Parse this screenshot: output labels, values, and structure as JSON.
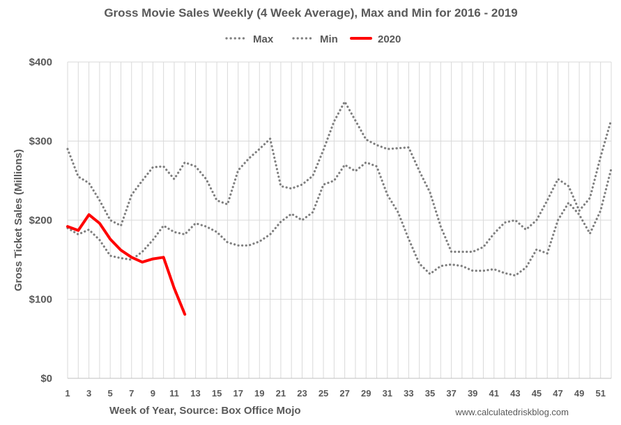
{
  "chart_data": {
    "type": "line",
    "title": "Gross Movie Sales Weekly (4 Week Average), Max and Min for 2016 - 2019",
    "xlabel": "Week of Year, Source: Box Office Mojo",
    "ylabel": "Gross Ticket Sales (Millions)",
    "source_note": "www.calculatedriskblog.com",
    "legend_position": "top-center",
    "grid": true,
    "xlim": [
      1,
      52
    ],
    "ylim": [
      0,
      400
    ],
    "y_ticks": [
      {
        "value": 0,
        "label": "$0"
      },
      {
        "value": 100,
        "label": "$100"
      },
      {
        "value": 200,
        "label": "$200"
      },
      {
        "value": 300,
        "label": "$300"
      },
      {
        "value": 400,
        "label": "$400"
      }
    ],
    "x_ticks": [
      "1",
      "3",
      "5",
      "7",
      "9",
      "11",
      "13",
      "15",
      "17",
      "19",
      "21",
      "23",
      "25",
      "27",
      "29",
      "31",
      "33",
      "35",
      "37",
      "39",
      "41",
      "43",
      "45",
      "47",
      "49",
      "51"
    ],
    "series": [
      {
        "name": "Max",
        "style": "dotted",
        "color": "#7f7f7f",
        "x": [
          1,
          2,
          3,
          4,
          5,
          6,
          7,
          8,
          9,
          10,
          11,
          12,
          13,
          14,
          15,
          16,
          17,
          18,
          19,
          20,
          21,
          22,
          23,
          24,
          25,
          26,
          27,
          28,
          29,
          30,
          31,
          32,
          33,
          34,
          35,
          36,
          37,
          38,
          39,
          40,
          41,
          42,
          43,
          44,
          45,
          46,
          47,
          48,
          49,
          50,
          51,
          52
        ],
        "values": [
          290,
          255,
          247,
          225,
          200,
          193,
          232,
          250,
          267,
          268,
          252,
          273,
          268,
          252,
          225,
          220,
          263,
          278,
          290,
          303,
          243,
          240,
          245,
          256,
          289,
          325,
          350,
          326,
          302,
          295,
          290,
          291,
          292,
          262,
          235,
          192,
          160,
          160,
          160,
          166,
          183,
          197,
          200,
          188,
          200,
          225,
          252,
          243,
          212,
          228,
          280,
          327
        ]
      },
      {
        "name": "Min",
        "style": "dotted",
        "color": "#7f7f7f",
        "x": [
          1,
          2,
          3,
          4,
          5,
          6,
          7,
          8,
          9,
          10,
          11,
          12,
          13,
          14,
          15,
          16,
          17,
          18,
          19,
          20,
          21,
          22,
          23,
          24,
          25,
          26,
          27,
          28,
          29,
          30,
          31,
          32,
          33,
          34,
          35,
          36,
          37,
          38,
          39,
          40,
          41,
          42,
          43,
          44,
          45,
          46,
          47,
          48,
          49,
          50,
          51,
          52
        ],
        "values": [
          190,
          182,
          188,
          175,
          155,
          152,
          150,
          160,
          175,
          193,
          185,
          182,
          196,
          192,
          185,
          172,
          168,
          168,
          173,
          182,
          198,
          208,
          200,
          210,
          245,
          250,
          270,
          262,
          273,
          268,
          232,
          210,
          176,
          145,
          132,
          142,
          144,
          142,
          136,
          136,
          138,
          133,
          130,
          140,
          163,
          158,
          200,
          222,
          207,
          183,
          212,
          265
        ]
      },
      {
        "name": "2020",
        "style": "solid",
        "color": "#ff0000",
        "x": [
          1,
          2,
          3,
          4,
          5,
          6,
          7,
          8,
          9,
          10,
          11,
          12
        ],
        "values": [
          192,
          187,
          207,
          196,
          176,
          162,
          153,
          147,
          151,
          153,
          114,
          81
        ]
      }
    ]
  }
}
